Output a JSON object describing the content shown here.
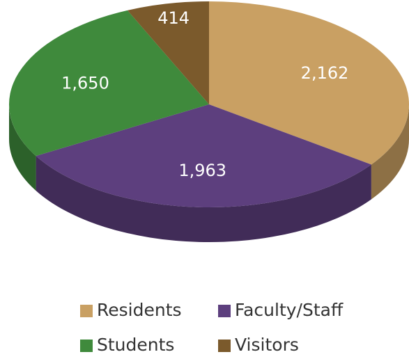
{
  "chart_data": {
    "type": "pie3d",
    "categories": [
      "Residents",
      "Faculty/Staff",
      "Students",
      "Visitors"
    ],
    "values": [
      2162,
      1963,
      1650,
      414
    ],
    "value_labels": [
      "2,162",
      "1,963",
      "1,650",
      "414"
    ],
    "colors": [
      "#c9a063",
      "#5d3f7e",
      "#3f8a3c",
      "#7b5a2c"
    ],
    "legend": "bottom"
  }
}
